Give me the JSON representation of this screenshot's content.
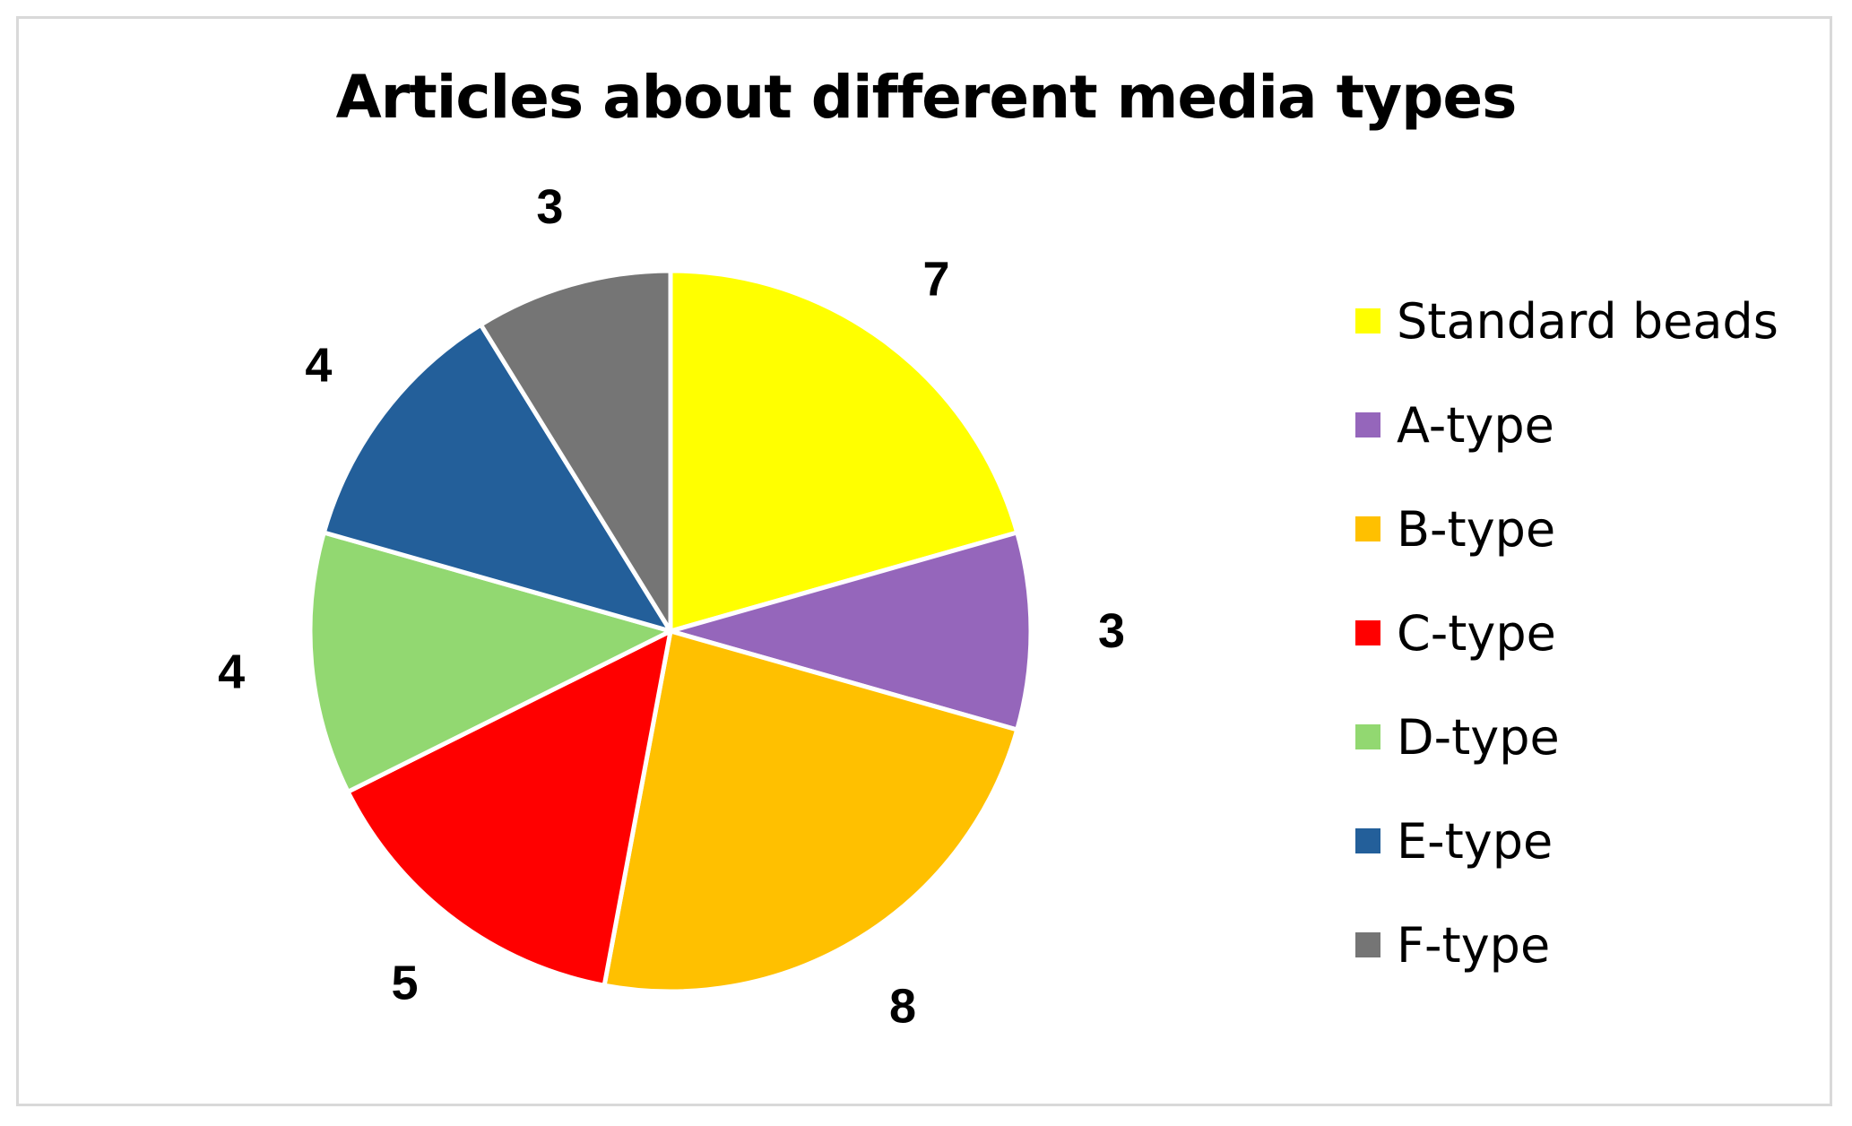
{
  "chart_data": {
    "type": "pie",
    "title": "Articles about different media types",
    "legend_position": "right",
    "slices": [
      {
        "label": "Standard beads",
        "value": 7,
        "color": "#ffff00"
      },
      {
        "label": "A-type",
        "value": 3,
        "color": "#9566bb"
      },
      {
        "label": "B-type",
        "value": 8,
        "color": "#ffc000"
      },
      {
        "label": "C-type",
        "value": 5,
        "color": "#ff0000"
      },
      {
        "label": "D-type",
        "value": 4,
        "color": "#92d871"
      },
      {
        "label": "E-type",
        "value": 4,
        "color": "#235f9a"
      },
      {
        "label": "F-type",
        "value": 3,
        "color": "#757575"
      }
    ]
  }
}
